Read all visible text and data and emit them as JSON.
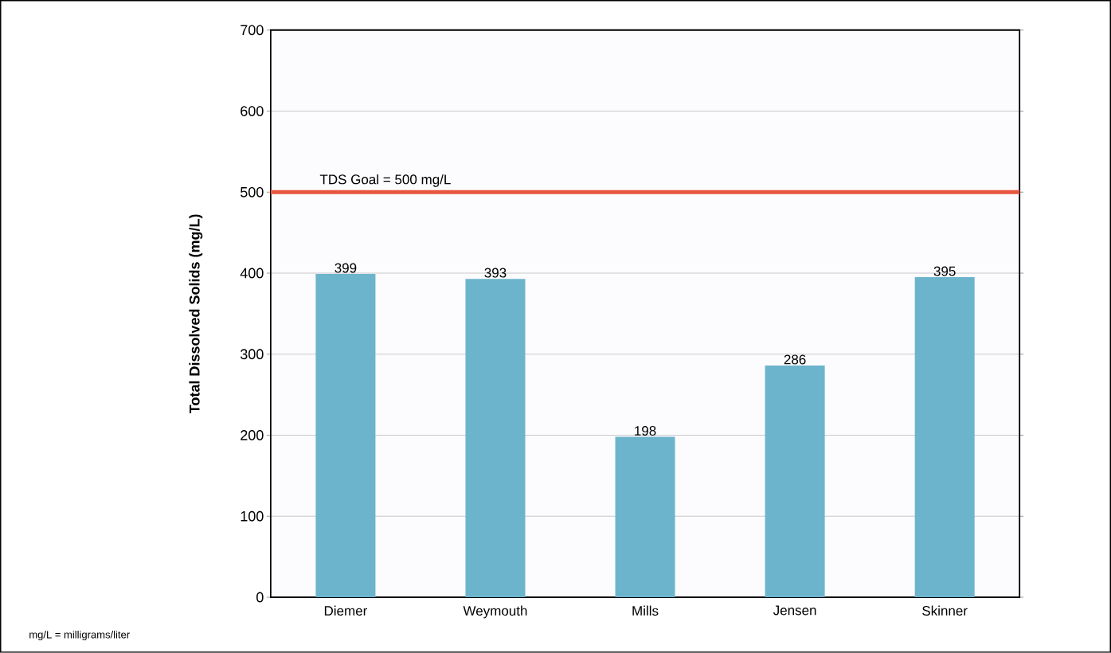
{
  "chart_data": {
    "type": "bar",
    "ylabel": "Total Dissolved Solids (mg/L)",
    "categories": [
      "Diemer",
      "Weymouth",
      "Mills",
      "Jensen",
      "Skinner"
    ],
    "values": [
      399,
      393,
      198,
      286,
      395
    ],
    "color": "#6cb4cc",
    "ylim": [
      0,
      700
    ],
    "yticks": [
      0,
      100,
      200,
      300,
      400,
      500,
      600,
      700
    ],
    "grid": "y",
    "data_labels": true,
    "ref_lines": [
      {
        "axis": "y",
        "value": 500,
        "label": "TDS Goal = 500 mg/L",
        "color": "#e8553f"
      }
    ],
    "annotations": [
      "mg/L = milligrams/liter"
    ]
  }
}
